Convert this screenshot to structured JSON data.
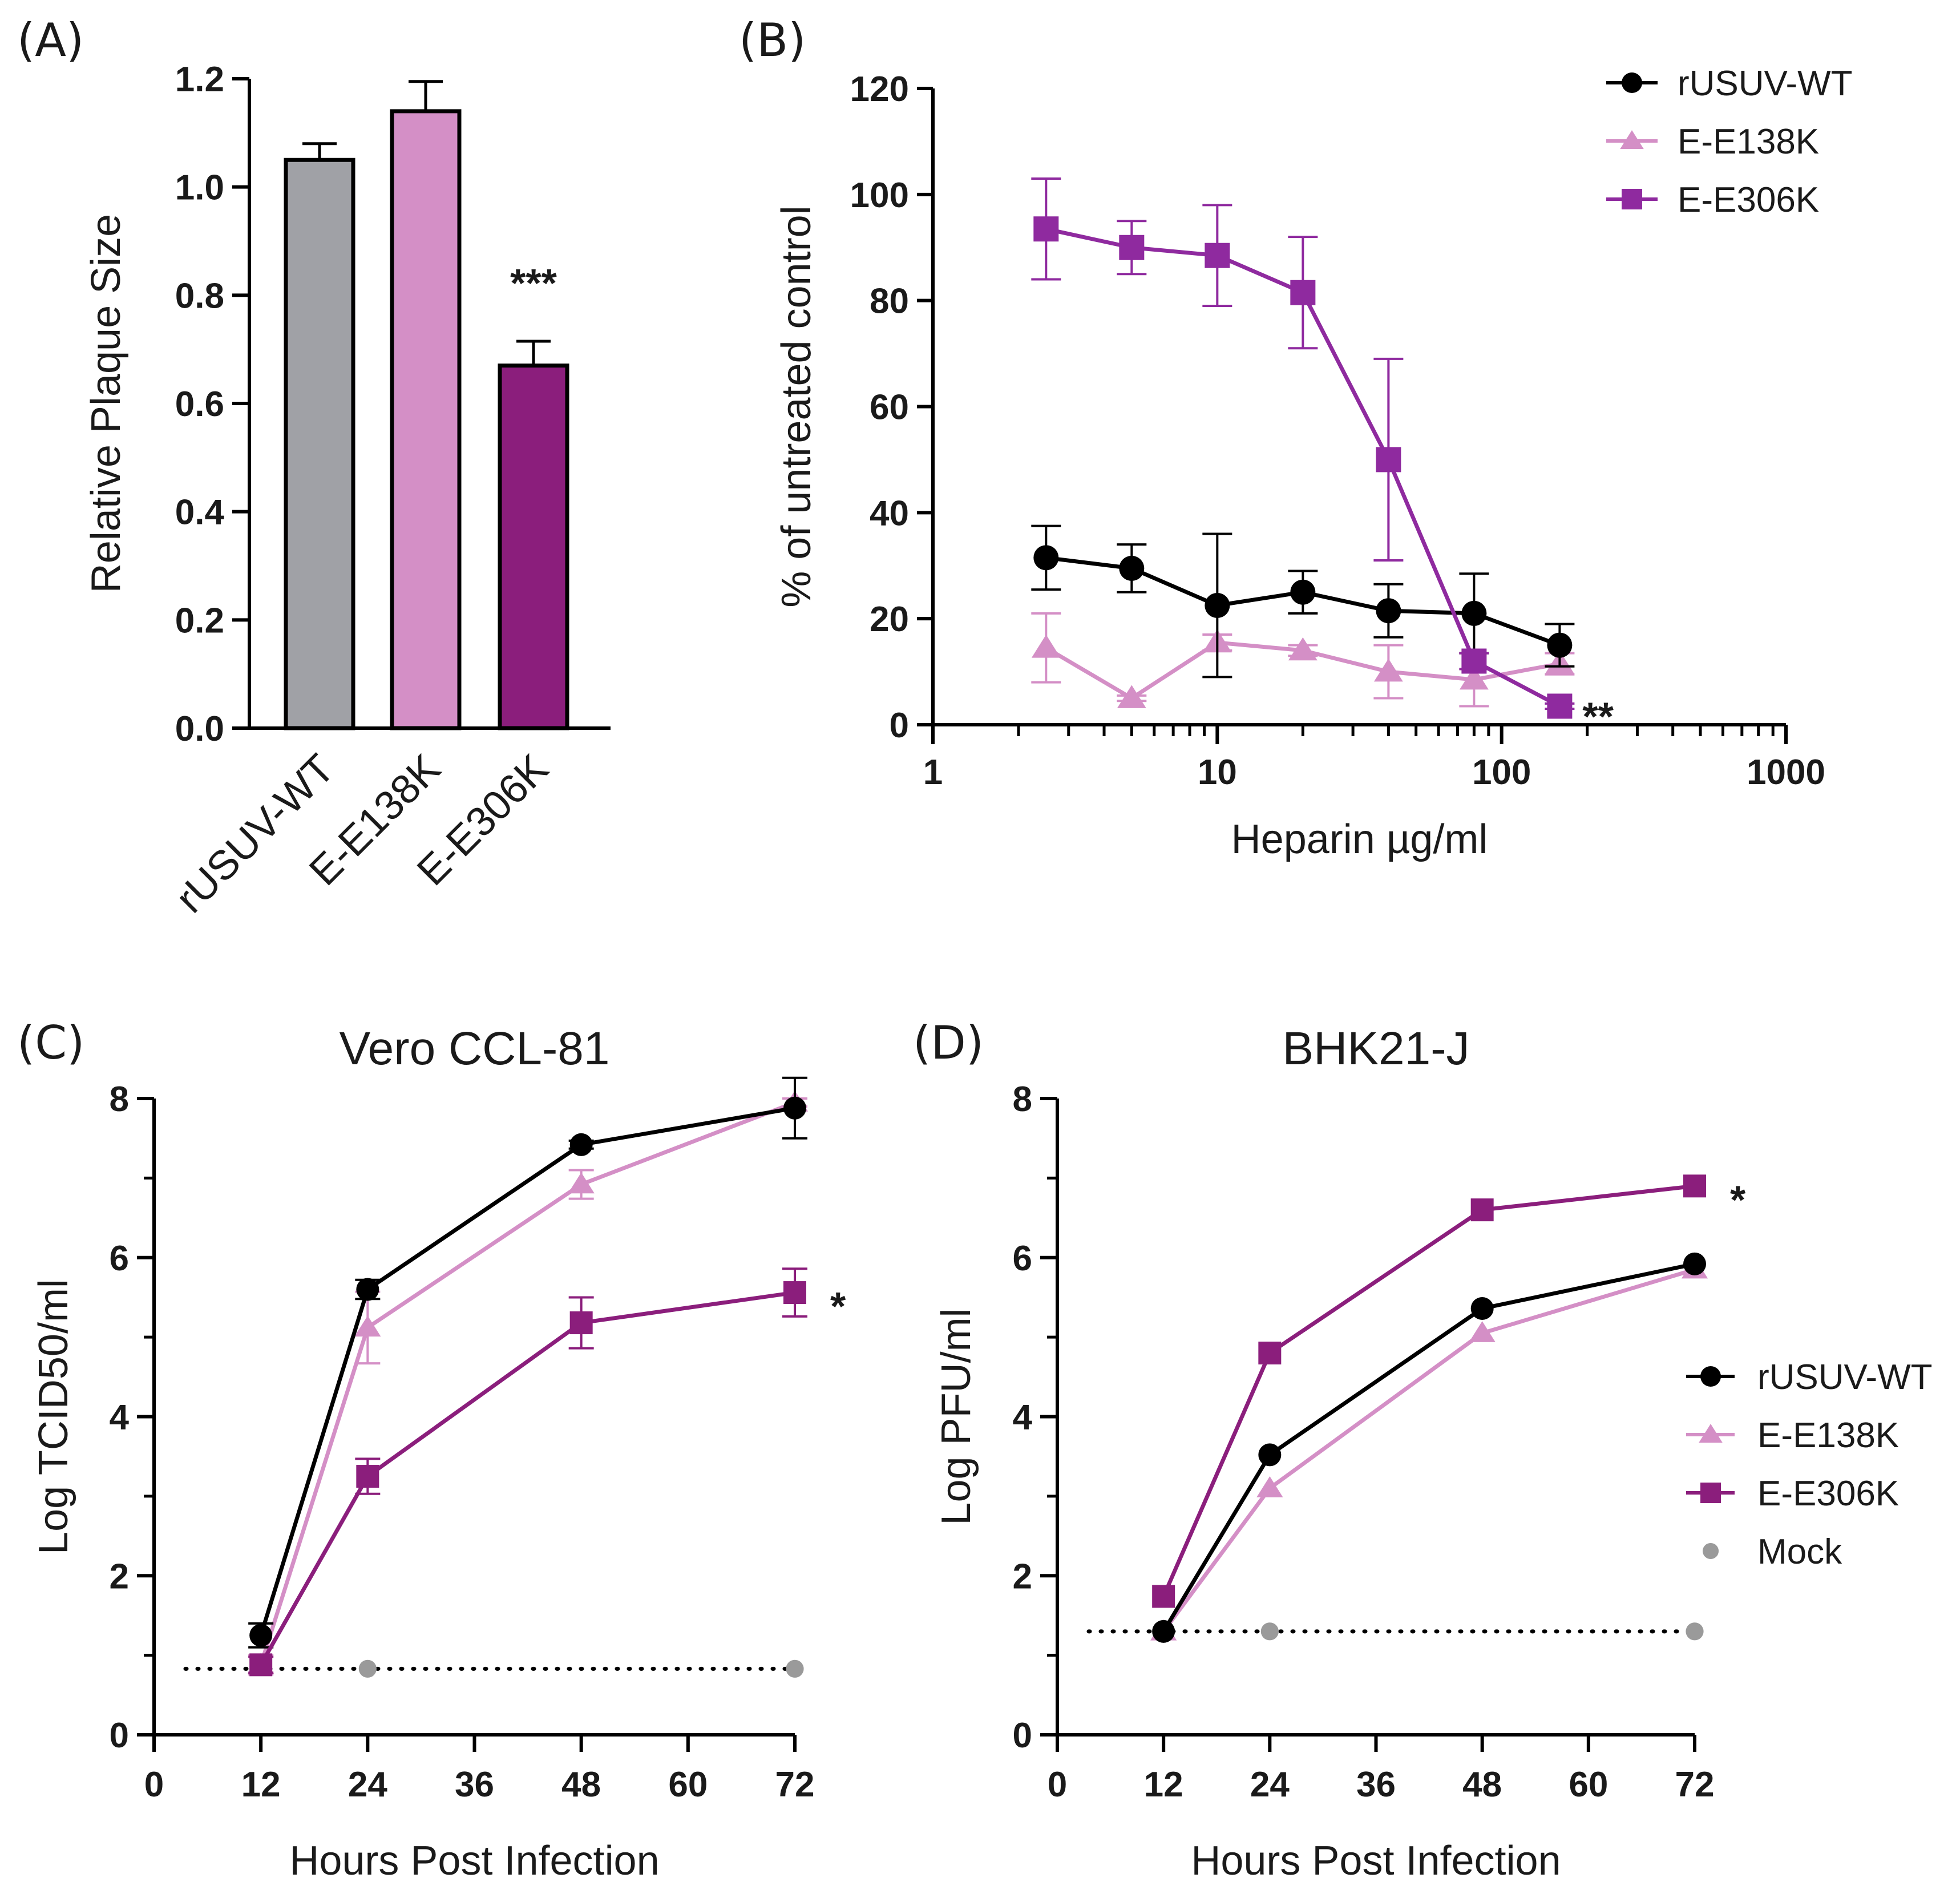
{
  "colors": {
    "wt": "#000000",
    "e138k": "#d48fc6",
    "e306k_bar": "#8b1e7c",
    "e306k_line": "#8f2a9f",
    "e306k_growth": "#8b1e7c",
    "bar_wt": "#a0a1a6",
    "mock": "#9a9a9a",
    "axis": "#000000"
  },
  "chart_data": [
    {
      "id": "A",
      "panel_label": "(A)",
      "type": "bar",
      "title": "",
      "xlabel": "",
      "ylabel": "Relative Plaque Size",
      "ylim": [
        0,
        1.2
      ],
      "yticks": [
        0.0,
        0.2,
        0.4,
        0.6,
        0.8,
        1.0,
        1.2
      ],
      "ytick_labels": [
        "0.0",
        "0.2",
        "0.4",
        "0.6",
        "0.8",
        "1.0",
        "1.2"
      ],
      "categories": [
        "rUSUV-WT",
        "E-E138K",
        "E-E306K"
      ],
      "values": [
        1.05,
        1.14,
        0.67
      ],
      "errors": [
        0.03,
        0.055,
        0.045
      ],
      "bar_colors": [
        "#a0a1a6",
        "#d48fc6",
        "#8b1e7c"
      ],
      "annotations": [
        {
          "category": "E-E306K",
          "text": "***"
        }
      ]
    },
    {
      "id": "B",
      "panel_label": "(B)",
      "type": "line",
      "xscale": "log",
      "title": "",
      "xlabel": "Heparin µg/ml",
      "ylabel": "% of untreated control",
      "xlim": [
        1,
        1000
      ],
      "ylim": [
        0,
        120
      ],
      "xticks": [
        1,
        10,
        100,
        1000
      ],
      "xtick_labels": [
        "1",
        "10",
        "100",
        "1000"
      ],
      "yticks": [
        0,
        20,
        40,
        60,
        80,
        100,
        120
      ],
      "ytick_labels": [
        "0",
        "20",
        "40",
        "60",
        "80",
        "100",
        "120"
      ],
      "legend_position": "top-right",
      "series": [
        {
          "name": "rUSUV-WT",
          "marker": "circle",
          "color": "#000000",
          "x": [
            2.5,
            5,
            10,
            20,
            40,
            80,
            160
          ],
          "y": [
            31.5,
            29.5,
            22.5,
            25,
            21.5,
            21,
            15
          ],
          "err": [
            6,
            4.5,
            13.5,
            4,
            5,
            7.5,
            4
          ]
        },
        {
          "name": "E-E138K",
          "marker": "triangle",
          "color": "#d48fc6",
          "x": [
            2.5,
            5,
            10,
            20,
            40,
            80,
            160
          ],
          "y": [
            14.5,
            5,
            15.5,
            14,
            10,
            8.5,
            11.5
          ],
          "err": [
            6.5,
            0.5,
            1.5,
            1,
            5,
            5,
            2
          ]
        },
        {
          "name": "E-E306K",
          "marker": "square",
          "color": "#8f2a9f",
          "x": [
            2.5,
            5,
            10,
            20,
            40,
            80,
            160
          ],
          "y": [
            93.5,
            90,
            88.5,
            81.5,
            50,
            12,
            3.5
          ],
          "err": [
            9.5,
            5,
            9.5,
            10.5,
            19,
            1.5,
            0.5
          ]
        }
      ],
      "annotations": [
        {
          "series": "E-E306K",
          "x": 160,
          "y": 3.5,
          "text": "**"
        }
      ]
    },
    {
      "id": "C",
      "panel_label": "(C)",
      "type": "line",
      "title": "Vero CCL-81",
      "xlabel": "Hours Post Infection",
      "ylabel": "Log TCID50/ml",
      "xlim": [
        0,
        72
      ],
      "ylim": [
        0,
        8
      ],
      "xticks": [
        0,
        12,
        24,
        36,
        48,
        60,
        72
      ],
      "xtick_labels": [
        "0",
        "12",
        "24",
        "36",
        "48",
        "60",
        "72"
      ],
      "yticks": [
        0,
        2,
        4,
        6,
        8
      ],
      "ytick_labels": [
        "0",
        "2",
        "4",
        "6",
        "8"
      ],
      "detection_limit": 0.83,
      "series": [
        {
          "name": "rUSUV-WT",
          "marker": "circle",
          "color": "#000000",
          "x": [
            12,
            24,
            48,
            72
          ],
          "y": [
            1.25,
            5.6,
            7.42,
            7.88
          ],
          "err": [
            0.15,
            0.12,
            0.05,
            0.38
          ]
        },
        {
          "name": "E-E138K",
          "marker": "triangle",
          "color": "#d48fc6",
          "x": [
            12,
            24,
            48,
            72
          ],
          "y": [
            0.88,
            5.12,
            6.92,
            7.95
          ],
          "err": [
            0.12,
            0.45,
            0.18,
            0.05
          ]
        },
        {
          "name": "E-E306K",
          "marker": "square",
          "color": "#8b1e7c",
          "x": [
            12,
            24,
            48,
            72
          ],
          "y": [
            0.88,
            3.25,
            5.18,
            5.56
          ],
          "err": [
            0.1,
            0.22,
            0.32,
            0.3
          ]
        },
        {
          "name": "Mock",
          "marker": "dot",
          "color": "#9a9a9a",
          "x": [
            24,
            72
          ],
          "y": [
            0.83,
            0.83
          ],
          "err": [
            0,
            0
          ]
        }
      ],
      "annotations": [
        {
          "series": "E-E306K",
          "x": 72,
          "y": 5.56,
          "text": "*"
        }
      ]
    },
    {
      "id": "D",
      "panel_label": "(D)",
      "type": "line",
      "title": "BHK21-J",
      "xlabel": "Hours Post Infection",
      "ylabel": "Log PFU/ml",
      "xlim": [
        0,
        72
      ],
      "ylim": [
        0,
        8
      ],
      "xticks": [
        0,
        12,
        24,
        36,
        48,
        60,
        72
      ],
      "xtick_labels": [
        "0",
        "12",
        "24",
        "36",
        "48",
        "60",
        "72"
      ],
      "yticks": [
        0,
        2,
        4,
        6,
        8
      ],
      "ytick_labels": [
        "0",
        "2",
        "4",
        "6",
        "8"
      ],
      "detection_limit": 1.3,
      "legend_position": "right",
      "series": [
        {
          "name": "rUSUV-WT",
          "marker": "circle",
          "color": "#000000",
          "x": [
            12,
            24,
            48,
            72
          ],
          "y": [
            1.3,
            3.52,
            5.36,
            5.92
          ],
          "err": [
            0,
            0,
            0,
            0
          ]
        },
        {
          "name": "E-E138K",
          "marker": "triangle",
          "color": "#d48fc6",
          "x": [
            12,
            24,
            48,
            72
          ],
          "y": [
            1.3,
            3.1,
            5.05,
            5.85
          ],
          "err": [
            0,
            0,
            0,
            0
          ]
        },
        {
          "name": "E-E306K",
          "marker": "square",
          "color": "#8b1e7c",
          "x": [
            12,
            24,
            48,
            72
          ],
          "y": [
            1.74,
            4.8,
            6.6,
            6.9
          ],
          "err": [
            0,
            0,
            0,
            0
          ]
        },
        {
          "name": "Mock",
          "marker": "dot",
          "color": "#9a9a9a",
          "x": [
            24,
            72
          ],
          "y": [
            1.3,
            1.3
          ],
          "err": [
            0,
            0
          ]
        }
      ],
      "annotations": [
        {
          "series": "E-E306K",
          "x": 72,
          "y": 6.9,
          "text": "*"
        }
      ]
    }
  ]
}
